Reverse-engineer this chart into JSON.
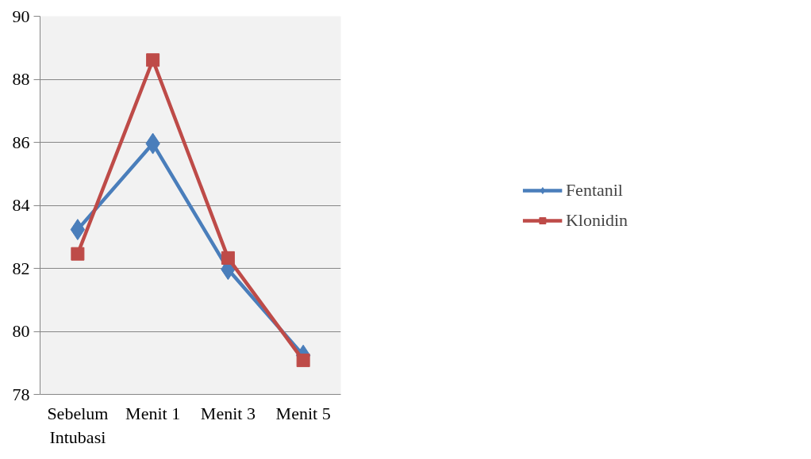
{
  "chart_data": {
    "type": "line",
    "categories": [
      "Sebelum Intubasi",
      "Menit 1",
      "Menit 3",
      "Menit 5"
    ],
    "series": [
      {
        "name": "Fentanil",
        "color": "#4a7ebb",
        "marker": "diamond",
        "values": [
          83.23,
          85.96,
          81.97,
          79.24
        ]
      },
      {
        "name": "Klonidin",
        "color": "#be4b48",
        "marker": "square",
        "values": [
          82.46,
          88.61,
          82.33,
          79.08
        ]
      }
    ],
    "ylim": [
      78,
      90
    ],
    "yticks": [
      78,
      80,
      82,
      84,
      86,
      88,
      90
    ],
    "grid": "y",
    "legend": "right",
    "line_style": "solid"
  }
}
